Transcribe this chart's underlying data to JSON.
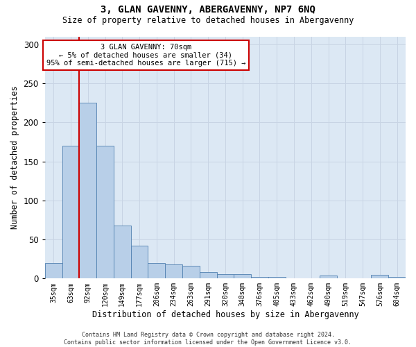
{
  "title1": "3, GLAN GAVENNY, ABERGAVENNY, NP7 6NQ",
  "title2": "Size of property relative to detached houses in Abergavenny",
  "xlabel": "Distribution of detached houses by size in Abergavenny",
  "ylabel": "Number of detached properties",
  "categories": [
    "35sqm",
    "63sqm",
    "92sqm",
    "120sqm",
    "149sqm",
    "177sqm",
    "206sqm",
    "234sqm",
    "263sqm",
    "291sqm",
    "320sqm",
    "348sqm",
    "376sqm",
    "405sqm",
    "433sqm",
    "462sqm",
    "490sqm",
    "519sqm",
    "547sqm",
    "576sqm",
    "604sqm"
  ],
  "bar_values": [
    20,
    170,
    225,
    170,
    68,
    42,
    20,
    18,
    16,
    8,
    6,
    6,
    2,
    2,
    0,
    0,
    4,
    0,
    0,
    5,
    2
  ],
  "bar_color": "#b8cfe8",
  "bar_edge_color": "#5080b0",
  "redline_x": 1.5,
  "annotation_text": "3 GLAN GAVENNY: 70sqm\n← 5% of detached houses are smaller (34)\n95% of semi-detached houses are larger (715) →",
  "annotation_box_facecolor": "#ffffff",
  "annotation_box_edgecolor": "#cc0000",
  "redline_color": "#cc0000",
  "grid_color": "#c8d4e4",
  "bg_color": "#dce8f4",
  "ylim": [
    0,
    310
  ],
  "yticks": [
    0,
    50,
    100,
    150,
    200,
    250,
    300
  ],
  "footer_line1": "Contains HM Land Registry data © Crown copyright and database right 2024.",
  "footer_line2": "Contains public sector information licensed under the Open Government Licence v3.0."
}
